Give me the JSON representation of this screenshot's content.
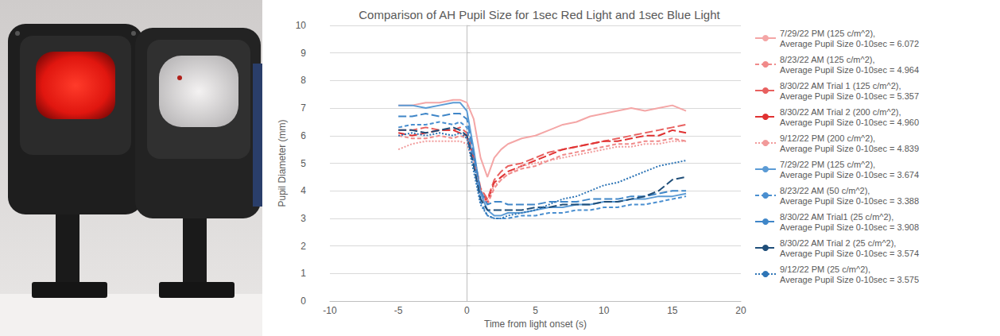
{
  "chart_data": {
    "type": "line",
    "title": "Comparison of AH Pupil Size for 1sec Red Light and 1sec Blue Light",
    "x_label": "Time from light onset (s)",
    "y_label": "Pupil Diameter (mm)",
    "x": [
      -5,
      -4,
      -3,
      -2,
      -1,
      -0.5,
      0,
      0.5,
      1,
      1.5,
      2,
      2.5,
      3,
      4,
      5,
      6,
      7,
      8,
      9,
      10,
      11,
      12,
      13,
      14,
      15,
      16
    ],
    "series": [
      {
        "name": "7/29/22 PM (125 c/m^2), Average Pupil Size 0-10sec = 6.072",
        "color": "#f4a6a6",
        "line_style": "solid",
        "values": [
          7.1,
          7.1,
          7.2,
          7.2,
          7.3,
          7.3,
          7.2,
          6.6,
          5.2,
          4.5,
          5.2,
          5.5,
          5.7,
          5.9,
          6.0,
          6.2,
          6.4,
          6.5,
          6.7,
          6.8,
          6.9,
          7.0,
          6.9,
          7.0,
          7.1,
          6.9
        ]
      },
      {
        "name": "8/23/22 AM (125 c/m^2), Average Pupil Size 0-10sec = 4.964",
        "color": "#f08a8a",
        "line_style": "dashed",
        "values": [
          6.0,
          5.9,
          5.9,
          6.0,
          5.9,
          6.0,
          5.9,
          5.2,
          4.0,
          3.5,
          4.1,
          4.4,
          4.6,
          4.8,
          4.9,
          5.1,
          5.3,
          5.4,
          5.5,
          5.6,
          5.7,
          5.7,
          5.8,
          5.8,
          5.9,
          5.8
        ]
      },
      {
        "name": "8/30/22 AM Trial 1 (125 c/m^2), Average Pupil Size 0-10sec = 5.357",
        "color": "#e8605f",
        "line_style": "long_dash",
        "values": [
          6.2,
          6.2,
          6.3,
          6.2,
          6.2,
          6.3,
          6.1,
          5.3,
          4.1,
          3.7,
          4.4,
          4.7,
          4.9,
          5.0,
          5.2,
          5.4,
          5.5,
          5.6,
          5.7,
          5.8,
          5.9,
          6.0,
          6.1,
          6.2,
          6.3,
          6.4
        ]
      },
      {
        "name": "8/30/22 AM Trial 2 (200 c/m^2), Average Pupil Size 0-10sec = 4.960",
        "color": "#e03232",
        "line_style": "long_dash",
        "values": [
          6.1,
          6.0,
          6.1,
          6.2,
          6.2,
          6.1,
          6.0,
          5.2,
          4.0,
          3.6,
          4.3,
          4.5,
          4.7,
          4.9,
          5.1,
          5.3,
          5.5,
          5.6,
          5.7,
          5.8,
          5.8,
          5.9,
          6.0,
          6.0,
          6.2,
          6.1
        ]
      },
      {
        "name": "9/12/22 PM (200 c/m^2), Average Pupil Size 0-10sec = 4.839",
        "color": "#f19a9a",
        "line_style": "dotted",
        "values": [
          5.5,
          5.7,
          5.8,
          5.8,
          5.8,
          5.8,
          5.7,
          5.0,
          3.9,
          3.6,
          4.2,
          4.4,
          4.6,
          4.9,
          5.0,
          5.1,
          5.2,
          5.3,
          5.4,
          5.5,
          5.6,
          5.6,
          5.7,
          5.7,
          5.8,
          5.8
        ]
      },
      {
        "name": "7/29/22 PM (125 c/m^2), Average Pupil Size 0-10sec = 3.674",
        "color": "#5b9bd5",
        "line_style": "solid",
        "values": [
          7.1,
          7.1,
          7.0,
          7.1,
          7.2,
          7.2,
          6.9,
          5.5,
          3.9,
          3.3,
          3.1,
          3.1,
          3.2,
          3.2,
          3.3,
          3.4,
          3.4,
          3.5,
          3.5,
          3.6,
          3.6,
          3.7,
          3.7,
          3.8,
          3.8,
          3.9
        ]
      },
      {
        "name": "8/23/22 AM (50 c/m^2), Average Pupil Size 0-10sec = 3.388",
        "color": "#4a8fd0",
        "line_style": "dashed",
        "values": [
          6.3,
          6.4,
          6.4,
          6.5,
          6.4,
          6.5,
          6.3,
          5.0,
          3.6,
          3.1,
          3.0,
          3.0,
          3.0,
          3.1,
          3.1,
          3.2,
          3.2,
          3.3,
          3.3,
          3.4,
          3.4,
          3.5,
          3.5,
          3.6,
          3.7,
          3.8
        ]
      },
      {
        "name": "8/30/22 AM Trial1 (25 c/m^2), Average Pupil Size 0-10sec = 3.908",
        "color": "#3f86c8",
        "line_style": "long_dash",
        "values": [
          6.7,
          6.7,
          6.8,
          6.7,
          6.8,
          6.8,
          6.6,
          5.3,
          4.0,
          3.5,
          3.6,
          3.6,
          3.5,
          3.5,
          3.5,
          3.6,
          3.6,
          3.6,
          3.7,
          3.7,
          3.7,
          3.8,
          3.8,
          3.9,
          4.0,
          4.0
        ]
      },
      {
        "name": "8/30/22 AM Trial 2 (25 c/m^2), Average Pupil Size 0-10sec = 3.574",
        "color": "#1f4e79",
        "line_style": "long_dash",
        "values": [
          6.2,
          6.2,
          6.1,
          6.2,
          6.3,
          6.2,
          6.0,
          4.9,
          3.7,
          3.3,
          3.3,
          3.3,
          3.3,
          3.3,
          3.4,
          3.4,
          3.5,
          3.5,
          3.5,
          3.6,
          3.6,
          3.7,
          3.8,
          4.0,
          4.4,
          4.5
        ]
      },
      {
        "name": "9/12/22 PM (25 c/m^2), Average Pupil Size 0-10sec = 3.575",
        "color": "#2e75b6",
        "line_style": "dotted",
        "values": [
          6.0,
          6.1,
          6.0,
          6.1,
          6.0,
          6.1,
          5.9,
          4.7,
          3.5,
          3.1,
          3.0,
          3.0,
          3.1,
          3.2,
          3.3,
          3.5,
          3.7,
          3.8,
          4.0,
          4.2,
          4.3,
          4.5,
          4.7,
          4.9,
          5.0,
          5.1
        ]
      }
    ],
    "xlim": [
      -10,
      20
    ],
    "xticks": [
      -10,
      -5,
      0,
      5,
      10,
      15,
      20
    ],
    "ylim": [
      0,
      10
    ],
    "yticks": [
      0,
      1,
      2,
      3,
      4,
      5,
      6,
      7,
      8,
      9,
      10
    ],
    "grid": true,
    "legend": "right"
  }
}
